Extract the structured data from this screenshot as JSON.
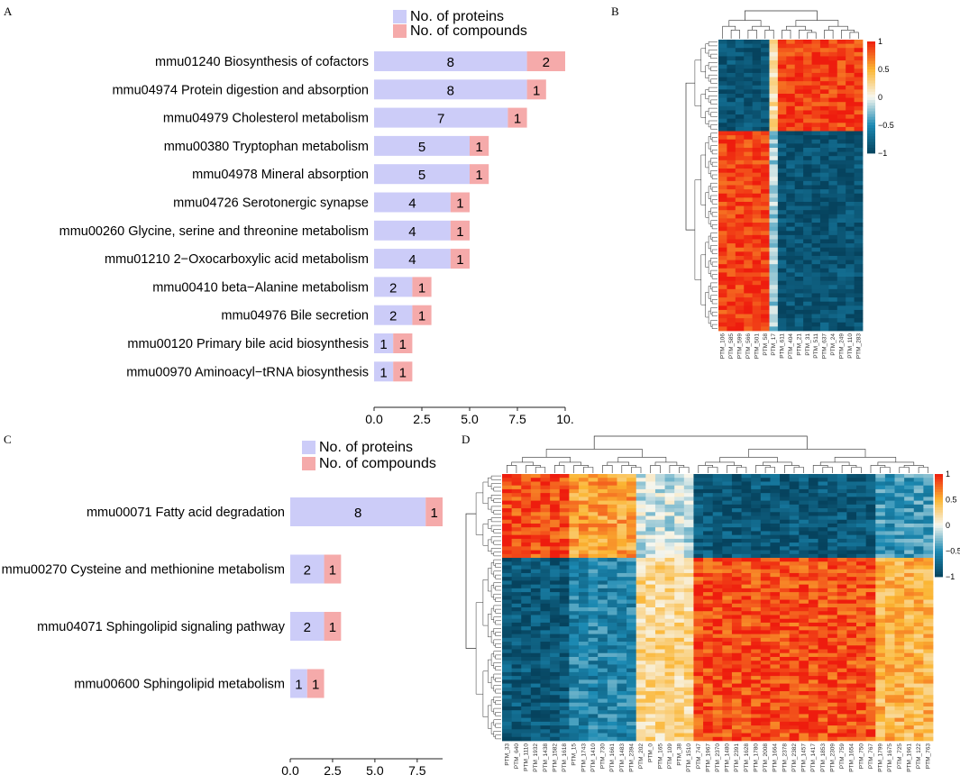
{
  "panels": {
    "A": {
      "letter": "A",
      "chart_data": {
        "type": "bar",
        "stacked": true,
        "orientation": "horizontal",
        "categories": [
          "mmu01240 Biosynthesis of cofactors",
          "mmu04974 Protein digestion and absorption",
          "mmu04979 Cholesterol metabolism",
          "mmu00380 Tryptophan metabolism",
          "mmu04978 Mineral absorption",
          "mmu04726 Serotonergic synapse",
          "mmu00260 Glycine, serine and threonine metabolism",
          "mmu01210 2−Oxocarboxylic acid metabolism",
          "mmu00410 beta−Alanine metabolism",
          "mmu04976 Bile secretion",
          "mmu00120 Primary bile acid biosynthesis",
          "mmu00970 Aminoacyl−tRNA biosynthesis"
        ],
        "series": [
          {
            "name": "No. of proteins",
            "color": "#ccccf8",
            "values": [
              8,
              8,
              7,
              5,
              5,
              4,
              4,
              4,
              2,
              2,
              1,
              1
            ]
          },
          {
            "name": "No. of compounds",
            "color": "#f5aaaa",
            "values": [
              2,
              1,
              1,
              1,
              1,
              1,
              1,
              1,
              1,
              1,
              1,
              1
            ]
          }
        ],
        "xlim": [
          0,
          10
        ],
        "xticks": [
          "0.0",
          "2.5",
          "5.0",
          "7.5",
          "10."
        ],
        "legend_position": "top"
      }
    },
    "B": {
      "letter": "B",
      "heatmap": {
        "type": "heatmap",
        "columns": [
          "PTM_106",
          "PTM_585",
          "PTM_599",
          "PTM_566",
          "PTM_501",
          "PTM_58",
          "PTM_17",
          "PTM_611",
          "PTM_404",
          "PTM_21",
          "PTM_31",
          "PTM_511",
          "PTM_637",
          "PTM_24",
          "PTM_249",
          "PTM_110",
          "PTM_283"
        ],
        "colorbar": {
          "ticks": [
            "1",
            "0.5",
            "0",
            "−0.5",
            "−1"
          ],
          "colors": [
            "#ee1c0e",
            "#fbb532",
            "#f7f7ef",
            "#1c8ab3",
            "#06435e"
          ]
        }
      }
    },
    "C": {
      "letter": "C",
      "chart_data": {
        "type": "bar",
        "stacked": true,
        "orientation": "horizontal",
        "categories": [
          "mmu00071 Fatty acid degradation",
          "mmu00270 Cysteine and methionine metabolism",
          "mmu04071 Sphingolipid signaling pathway",
          "mmu00600 Sphingolipid metabolism"
        ],
        "series": [
          {
            "name": "No. of proteins",
            "color": "#ccccf8",
            "values": [
              8,
              2,
              2,
              1
            ]
          },
          {
            "name": "No. of compounds",
            "color": "#f5aaaa",
            "values": [
              1,
              1,
              1,
              1
            ]
          }
        ],
        "xlim": [
          0,
          9
        ],
        "xticks": [
          "0.0",
          "2.5",
          "5.0",
          "7.5"
        ],
        "legend_position": "top"
      }
    },
    "D": {
      "letter": "D",
      "heatmap": {
        "type": "heatmap",
        "columns": [
          "PTM_33",
          "PTM_640",
          "PTM_1110",
          "PTM_1932",
          "PTM_1438",
          "PTM_1582",
          "PTM_1618",
          "PTM_15",
          "PTM_1743",
          "PTM_1410",
          "PTM_730",
          "PTM_1661",
          "PTM_1483",
          "PTM_2394",
          "PTM_202",
          "PTM_0",
          "PTM_165",
          "PTM_109",
          "PTM_38",
          "PTM_1510",
          "PTM_747",
          "PTM_1967",
          "PTM_2370",
          "PTM_1480",
          "PTM_2391",
          "PTM_1628",
          "PTM_1780",
          "PTM_2008",
          "PTM_1664",
          "PTM_2378",
          "PTM_2382",
          "PTM_1457",
          "PTM_1417",
          "PTM_1853",
          "PTM_2309",
          "PTM_759",
          "PTM_1654",
          "PTM_750",
          "PTM_767",
          "PTM_1799",
          "PTM_1675",
          "PTM_725",
          "PTM_1961",
          "PTM_122",
          "PTM_763"
        ],
        "colorbar": {
          "ticks": [
            "1",
            "0.5",
            "0",
            "−0.5",
            "−1"
          ],
          "colors": [
            "#ee1c0e",
            "#fbb532",
            "#f7f7ef",
            "#1c8ab3",
            "#06435e"
          ]
        }
      }
    }
  }
}
